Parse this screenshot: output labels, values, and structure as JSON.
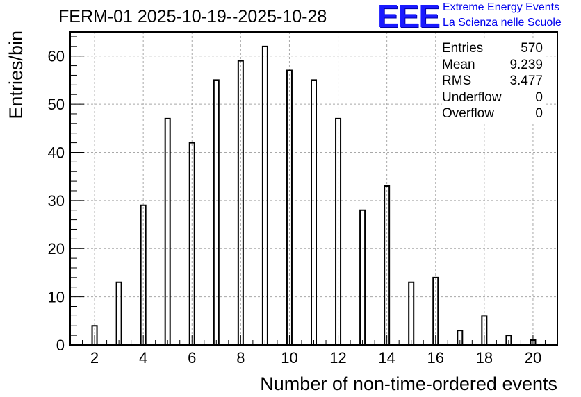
{
  "chart_data": {
    "type": "bar",
    "title": "FERM-01 2025-10-19--2025-10-28",
    "xlabel": "Number of non-time-ordered events",
    "ylabel": "Entries/bin",
    "xlim": [
      1,
      21
    ],
    "ylim": [
      0,
      65
    ],
    "x_ticks": [
      2,
      4,
      6,
      8,
      10,
      12,
      14,
      16,
      18,
      20
    ],
    "y_ticks": [
      0,
      10,
      20,
      30,
      40,
      50,
      60
    ],
    "grid": true,
    "bar_width": 0.2,
    "x": [
      2,
      3,
      4,
      5,
      6,
      7,
      8,
      9,
      10,
      11,
      12,
      13,
      14,
      15,
      16,
      17,
      18,
      19,
      20
    ],
    "values": [
      4,
      13,
      29,
      47,
      42,
      55,
      59,
      62,
      57,
      55,
      47,
      28,
      33,
      13,
      14,
      3,
      6,
      2,
      1
    ]
  },
  "stats": [
    {
      "label": "Entries",
      "value": "570"
    },
    {
      "label": "Mean",
      "value": "9.239"
    },
    {
      "label": "RMS",
      "value": "3.477"
    },
    {
      "label": "Underflow",
      "value": "0"
    },
    {
      "label": "Overflow",
      "value": "0"
    }
  ],
  "logo": {
    "mark": "EEE",
    "line1": "Extreme Energy Events",
    "line2": "La Scienza nelle Scuole",
    "color": "#1a1aff"
  }
}
